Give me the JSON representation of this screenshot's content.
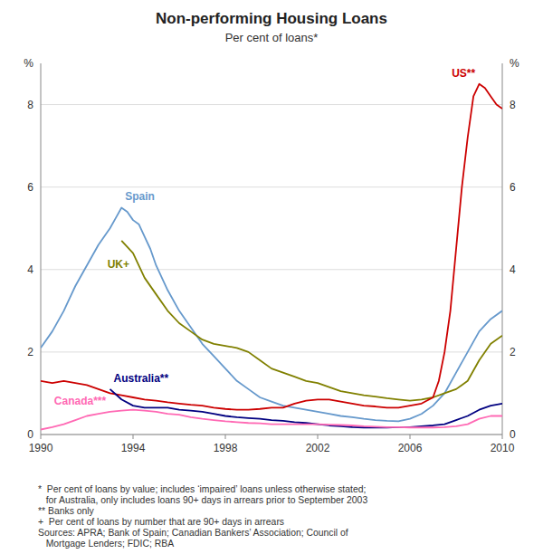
{
  "chart_data": {
    "type": "line",
    "title": "Non-performing Housing Loans",
    "subtitle": "Per cent of loans*",
    "ylabel": "%",
    "y2label": "%",
    "footnote": "*  Per cent of loans by value; includes ‘impaired’ loans unless otherwise stated;\n   for Australia, only includes loans 90+ days in arrears prior to September 2003\n** Banks only\n+  Per cent of loans by number that are 90+ days in arrears\nSources: APRA; Bank of Spain; Canadian Bankers’ Association; Council of\n   Mortgage Lenders; FDIC; RBA",
    "xlim": [
      1990,
      2010
    ],
    "xticks": [
      1990,
      1994,
      1998,
      2002,
      2006,
      2010
    ],
    "ylim": [
      0,
      9
    ],
    "yticks": [
      0,
      2,
      4,
      6,
      8
    ],
    "y2lim": [
      0,
      9
    ],
    "y2ticks": [
      0,
      2,
      4,
      6,
      8
    ],
    "grid": true,
    "series": [
      {
        "name": "Spain",
        "color": "#6699CC",
        "x": [
          1990,
          1990.5,
          1991,
          1991.25,
          1991.5,
          1992,
          1992.5,
          1993,
          1993.25,
          1993.5,
          1993.75,
          1994,
          1994.25,
          1994.5,
          1994.75,
          1995,
          1995.5,
          1996,
          1996.5,
          1997,
          1997.5,
          1998,
          1998.5,
          1999,
          1999.5,
          2000,
          2000.5,
          2001,
          2001.5,
          2002,
          2002.5,
          2003,
          2003.5,
          2004,
          2004.5,
          2005,
          2005.5,
          2006,
          2006.5,
          2007,
          2007.5,
          2008,
          2008.5,
          2009,
          2009.5,
          2010
        ],
        "values": [
          2.1,
          2.5,
          3.0,
          3.3,
          3.6,
          4.1,
          4.6,
          5.0,
          5.25,
          5.5,
          5.4,
          5.2,
          5.1,
          4.8,
          4.5,
          4.1,
          3.5,
          3.0,
          2.6,
          2.2,
          1.9,
          1.6,
          1.3,
          1.1,
          0.9,
          0.8,
          0.7,
          0.65,
          0.6,
          0.55,
          0.5,
          0.45,
          0.42,
          0.38,
          0.35,
          0.33,
          0.32,
          0.38,
          0.5,
          0.7,
          1.0,
          1.5,
          2.0,
          2.5,
          2.8,
          3.0
        ]
      },
      {
        "name": "UK+",
        "color": "#808000",
        "x": [
          1993.5,
          1994,
          1994.5,
          1995,
          1995.5,
          1996,
          1996.5,
          1997,
          1997.5,
          1998,
          1998.5,
          1999,
          1999.5,
          2000,
          2000.5,
          2001,
          2001.5,
          2002,
          2002.5,
          2003,
          2003.5,
          2004,
          2004.5,
          2005,
          2005.5,
          2006,
          2006.5,
          2007,
          2007.5,
          2008,
          2008.5,
          2009,
          2009.5,
          2010
        ],
        "values": [
          4.7,
          4.4,
          3.8,
          3.4,
          3.0,
          2.7,
          2.5,
          2.3,
          2.2,
          2.15,
          2.1,
          2.0,
          1.8,
          1.6,
          1.5,
          1.4,
          1.3,
          1.25,
          1.15,
          1.05,
          1.0,
          0.95,
          0.92,
          0.88,
          0.85,
          0.82,
          0.85,
          0.9,
          1.0,
          1.1,
          1.3,
          1.8,
          2.2,
          2.4
        ]
      },
      {
        "name": "US**",
        "color": "#CC0000",
        "x": [
          1990,
          1990.5,
          1991,
          1991.5,
          1992,
          1992.5,
          1993,
          1993.5,
          1994,
          1994.5,
          1995,
          1995.5,
          1996,
          1996.5,
          1997,
          1997.5,
          1998,
          1998.5,
          1999,
          1999.5,
          2000,
          2000.5,
          2001,
          2001.5,
          2002,
          2002.5,
          2003,
          2003.5,
          2004,
          2004.5,
          2005,
          2005.5,
          2006,
          2006.5,
          2007,
          2007.25,
          2007.5,
          2007.75,
          2008,
          2008.25,
          2008.5,
          2008.75,
          2009,
          2009.25,
          2009.5,
          2009.75,
          2010
        ],
        "values": [
          1.3,
          1.25,
          1.3,
          1.25,
          1.2,
          1.1,
          1.0,
          0.95,
          0.9,
          0.85,
          0.82,
          0.78,
          0.75,
          0.72,
          0.7,
          0.65,
          0.62,
          0.6,
          0.6,
          0.62,
          0.65,
          0.65,
          0.75,
          0.82,
          0.85,
          0.85,
          0.8,
          0.75,
          0.7,
          0.68,
          0.65,
          0.65,
          0.7,
          0.75,
          0.9,
          1.3,
          2.0,
          3.0,
          4.5,
          6.0,
          7.2,
          8.2,
          8.5,
          8.4,
          8.2,
          8.0,
          7.9
        ]
      },
      {
        "name": "Australia**",
        "color": "#000080",
        "x": [
          1993,
          1993.5,
          1994,
          1994.5,
          1995,
          1995.5,
          1996,
          1996.5,
          1997,
          1997.5,
          1998,
          1998.5,
          1999,
          1999.5,
          2000,
          2000.5,
          2001,
          2001.5,
          2002,
          2002.5,
          2003,
          2003.5,
          2004,
          2004.5,
          2005,
          2005.5,
          2006,
          2006.5,
          2007,
          2007.5,
          2008,
          2008.5,
          2009,
          2009.5,
          2010
        ],
        "values": [
          1.1,
          0.85,
          0.7,
          0.65,
          0.65,
          0.65,
          0.6,
          0.58,
          0.55,
          0.5,
          0.45,
          0.42,
          0.4,
          0.38,
          0.35,
          0.33,
          0.3,
          0.28,
          0.25,
          0.22,
          0.2,
          0.18,
          0.17,
          0.17,
          0.17,
          0.18,
          0.18,
          0.2,
          0.22,
          0.25,
          0.35,
          0.45,
          0.6,
          0.7,
          0.75
        ]
      },
      {
        "name": "Canada***",
        "color": "#FF69B4",
        "x": [
          1990,
          1990.5,
          1991,
          1991.5,
          1992,
          1992.5,
          1993,
          1993.5,
          1994,
          1994.5,
          1995,
          1995.5,
          1996,
          1996.5,
          1997,
          1997.5,
          1998,
          1998.5,
          1999,
          1999.5,
          2000,
          2000.5,
          2001,
          2001.5,
          2002,
          2002.5,
          2003,
          2003.5,
          2004,
          2004.5,
          2005,
          2005.5,
          2006,
          2006.5,
          2007,
          2007.5,
          2008,
          2008.5,
          2009,
          2009.5,
          2010
        ],
        "values": [
          0.12,
          0.18,
          0.25,
          0.35,
          0.45,
          0.5,
          0.55,
          0.58,
          0.6,
          0.58,
          0.55,
          0.5,
          0.48,
          0.42,
          0.38,
          0.35,
          0.32,
          0.3,
          0.28,
          0.27,
          0.25,
          0.25,
          0.25,
          0.25,
          0.25,
          0.24,
          0.23,
          0.22,
          0.2,
          0.19,
          0.18,
          0.18,
          0.17,
          0.17,
          0.17,
          0.18,
          0.2,
          0.25,
          0.38,
          0.45,
          0.45
        ]
      }
    ]
  }
}
